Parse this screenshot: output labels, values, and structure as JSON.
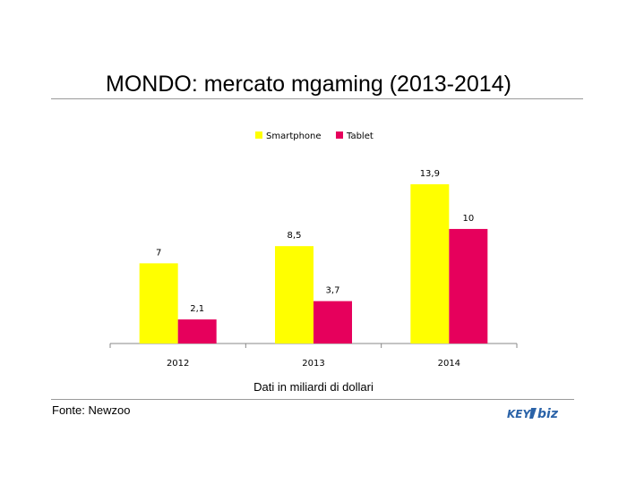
{
  "header": {
    "title": "MONDO: mercato mgaming (2013-2014)"
  },
  "footer": {
    "note": "Dati in miliardi di dollari",
    "source": "Fonte: Newzoo",
    "logo_text": "KEY4biz"
  },
  "colors": {
    "smartphone": "#FFFF00",
    "tablet": "#E6005C",
    "axis": "#888888",
    "rule": "#9a9a9a"
  },
  "chart_data": {
    "type": "bar",
    "title": "MONDO: mercato mgaming (2013-2014)",
    "categories": [
      "2012",
      "2013",
      "2014"
    ],
    "series": [
      {
        "name": "Smartphone",
        "values": [
          7,
          8.5,
          13.9
        ],
        "labels": [
          "7",
          "8,5",
          "13,9"
        ],
        "color": "#FFFF00"
      },
      {
        "name": "Tablet",
        "values": [
          2.1,
          3.7,
          10
        ],
        "labels": [
          "2,1",
          "3,7",
          "10"
        ],
        "color": "#E6005C"
      }
    ],
    "xlabel": "",
    "ylabel": "",
    "ylim": [
      0,
      16
    ],
    "grid": false,
    "legend": "top-center"
  }
}
